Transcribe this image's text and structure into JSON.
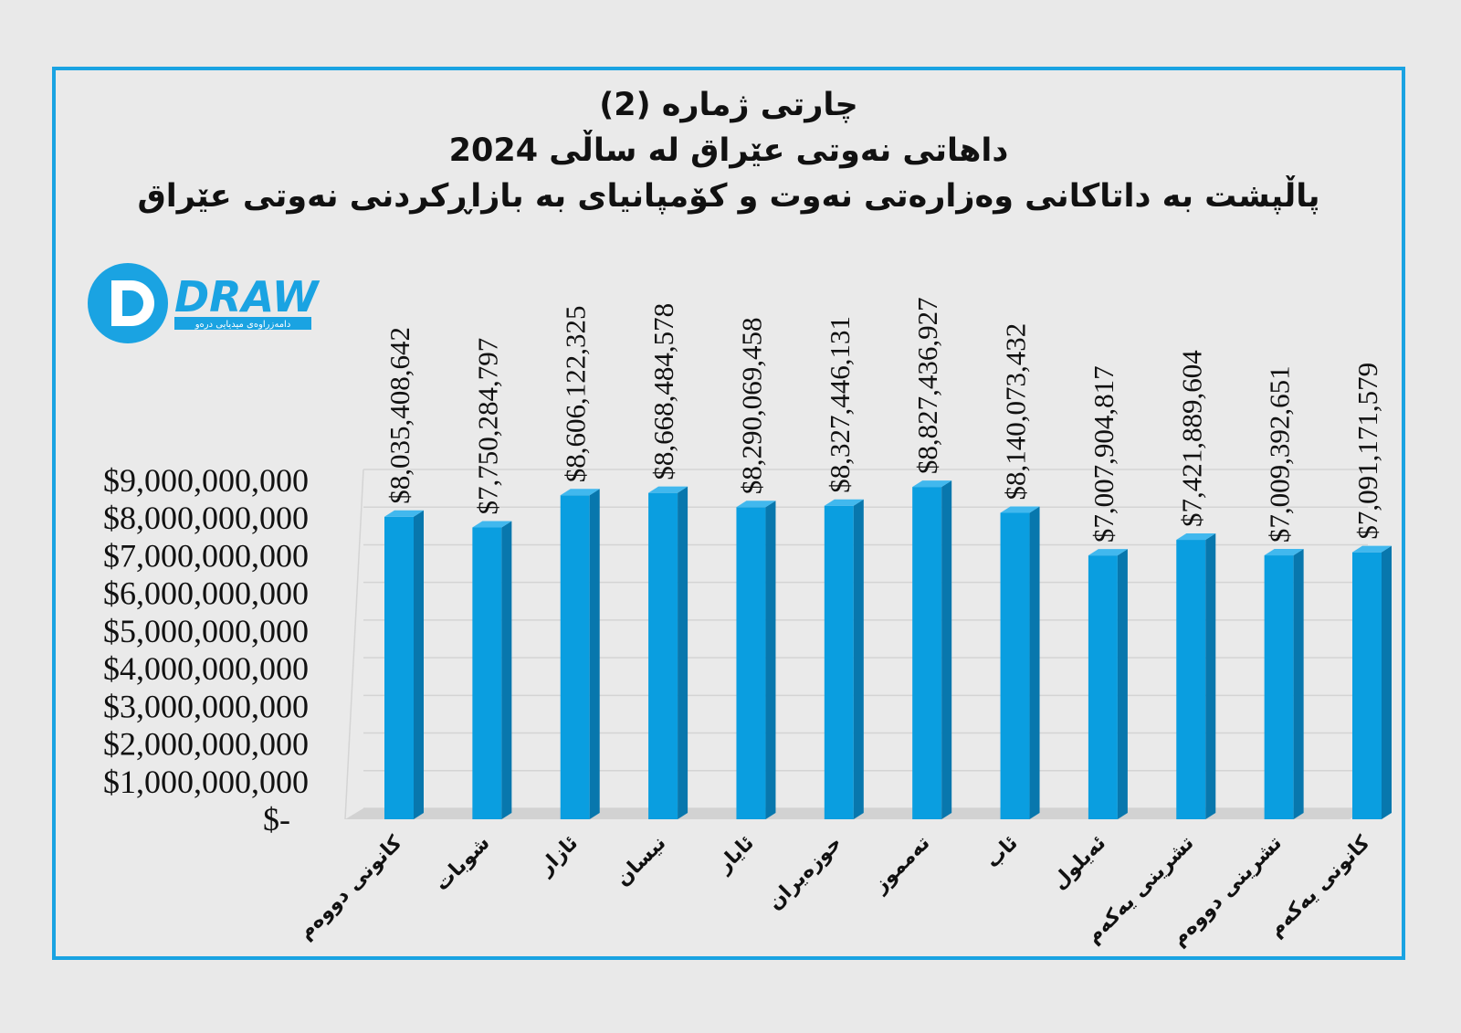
{
  "titles": {
    "line1": "چارتی ژمارە (2)",
    "line2": "داهاتی نەوتی عێراق لە ساڵی 2024",
    "line3": "پاڵپشت بە داتاکانی وەزارەتی نەوت و کۆمپانیای بە بازاڕکردنی نەوتی عێراق"
  },
  "logo": {
    "brand": "DRAW",
    "tagline": "دامەزراوەی میدیایی درەو"
  },
  "colors": {
    "bar": "#0a9ee0",
    "bar_side": "#0877ad",
    "bar_top": "#41b8ee",
    "frame": "#1aa3e2"
  },
  "chart_data": {
    "type": "bar",
    "title": "داهاتی نەوتی عێراق لە ساڵی 2024",
    "subtitle": "پاڵپشت بە داتاکانی وەزارەتی نەوت و کۆمپانیای بە بازاڕکردنی نەوتی عێراق",
    "ylim": [
      0,
      9000000000
    ],
    "grid": true,
    "legend": "none",
    "categories": [
      "کانونی دووەم",
      "شوبات",
      "ئازار",
      "نیسان",
      "ئایار",
      "حوزەیران",
      "تەمموز",
      "ئاب",
      "ئەیلول",
      "تشرینی یەکەم",
      "تشرینی دووەم",
      "کانونی یەکەم"
    ],
    "values": [
      8035408642,
      7750284797,
      8606122325,
      8668484578,
      8290069458,
      8327446131,
      8827436927,
      8140073432,
      7007904817,
      7421889604,
      7009392651,
      7091171579
    ],
    "value_labels": [
      "$8,035,408,642",
      "$7,750,284,797",
      "$8,606,122,325",
      "$8,668,484,578",
      "$8,290,069,458",
      "$8,327,446,131",
      "$8,827,436,927",
      "$8,140,073,432",
      "$7,007,904,817",
      "$7,421,889,604",
      "$7,009,392,651",
      "$7,091,171,579"
    ],
    "y_ticks": [
      "$-",
      "$1,000,000,000",
      "$2,000,000,000",
      "$3,000,000,000",
      "$4,000,000,000",
      "$5,000,000,000",
      "$6,000,000,000",
      "$7,000,000,000",
      "$8,000,000,000",
      "$9,000,000,000"
    ]
  }
}
